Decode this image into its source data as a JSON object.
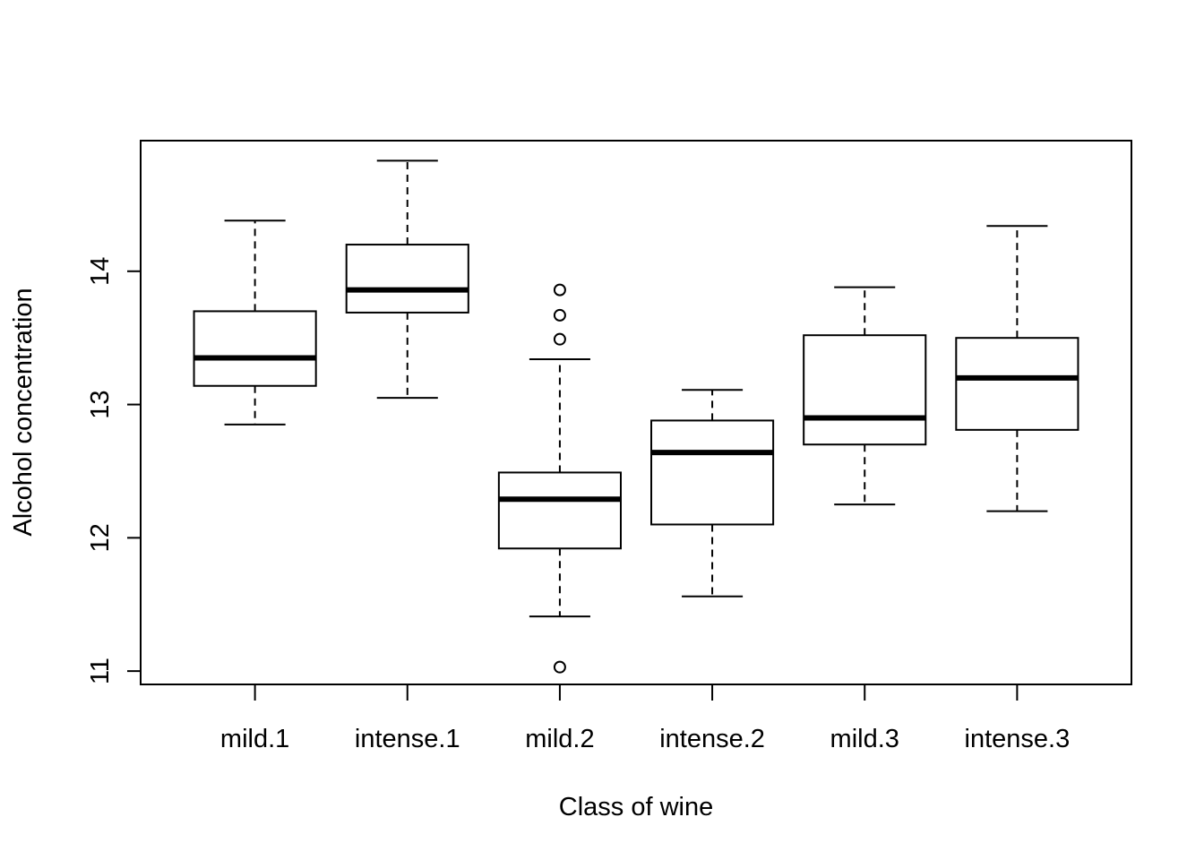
{
  "chart_data": {
    "type": "boxplot",
    "title": "",
    "xlabel": "Class of wine",
    "ylabel": "Alcohol concentration",
    "ylim": [
      10.9,
      14.98
    ],
    "yticks": [
      11,
      12,
      13,
      14
    ],
    "ytick_labels": [
      "11",
      "12",
      "13",
      "14"
    ],
    "grid": false,
    "categories": [
      "mild.1",
      "intense.1",
      "mild.2",
      "intense.2",
      "mild.3",
      "intense.3"
    ],
    "boxes": [
      {
        "category": "mild.1",
        "whisker_low": 12.85,
        "q1": 13.14,
        "median": 13.35,
        "q3": 13.7,
        "whisker_high": 14.38,
        "outliers": []
      },
      {
        "category": "intense.1",
        "whisker_low": 13.05,
        "q1": 13.69,
        "median": 13.86,
        "q3": 14.2,
        "whisker_high": 14.83,
        "outliers": []
      },
      {
        "category": "mild.2",
        "whisker_low": 11.41,
        "q1": 11.92,
        "median": 12.29,
        "q3": 12.49,
        "whisker_high": 13.34,
        "outliers": [
          11.03,
          13.49,
          13.67,
          13.86
        ]
      },
      {
        "category": "intense.2",
        "whisker_low": 11.56,
        "q1": 12.1,
        "median": 12.64,
        "q3": 12.88,
        "whisker_high": 13.11,
        "outliers": []
      },
      {
        "category": "mild.3",
        "whisker_low": 12.25,
        "q1": 12.7,
        "median": 12.9,
        "q3": 13.52,
        "whisker_high": 13.88,
        "outliers": []
      },
      {
        "category": "intense.3",
        "whisker_low": 12.2,
        "q1": 12.81,
        "median": 13.2,
        "q3": 13.5,
        "whisker_high": 14.34,
        "outliers": []
      }
    ]
  }
}
